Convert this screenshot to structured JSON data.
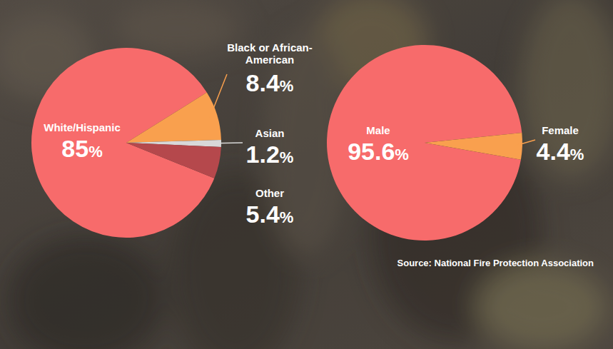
{
  "chart_data": [
    {
      "type": "pie",
      "categories": [
        "White/Hispanic",
        "Black or African-American",
        "Asian",
        "Other"
      ],
      "values": [
        85,
        8.4,
        1.2,
        5.4
      ],
      "value_labels": [
        "85%",
        "8.4%",
        "1.2%",
        "5.4%"
      ],
      "data_labels": true,
      "colors": [
        "#f76b6b",
        "#f9a04e",
        "#d8d8d8",
        "#b5484c"
      ]
    },
    {
      "type": "pie",
      "categories": [
        "Male",
        "Female"
      ],
      "values": [
        95.6,
        4.4
      ],
      "value_labels": [
        "95.6%",
        "4.4%"
      ],
      "data_labels": true,
      "colors": [
        "#f76b6b",
        "#f9a04e"
      ],
      "annotations": [
        "Source: National Fire Protection Association"
      ]
    }
  ]
}
